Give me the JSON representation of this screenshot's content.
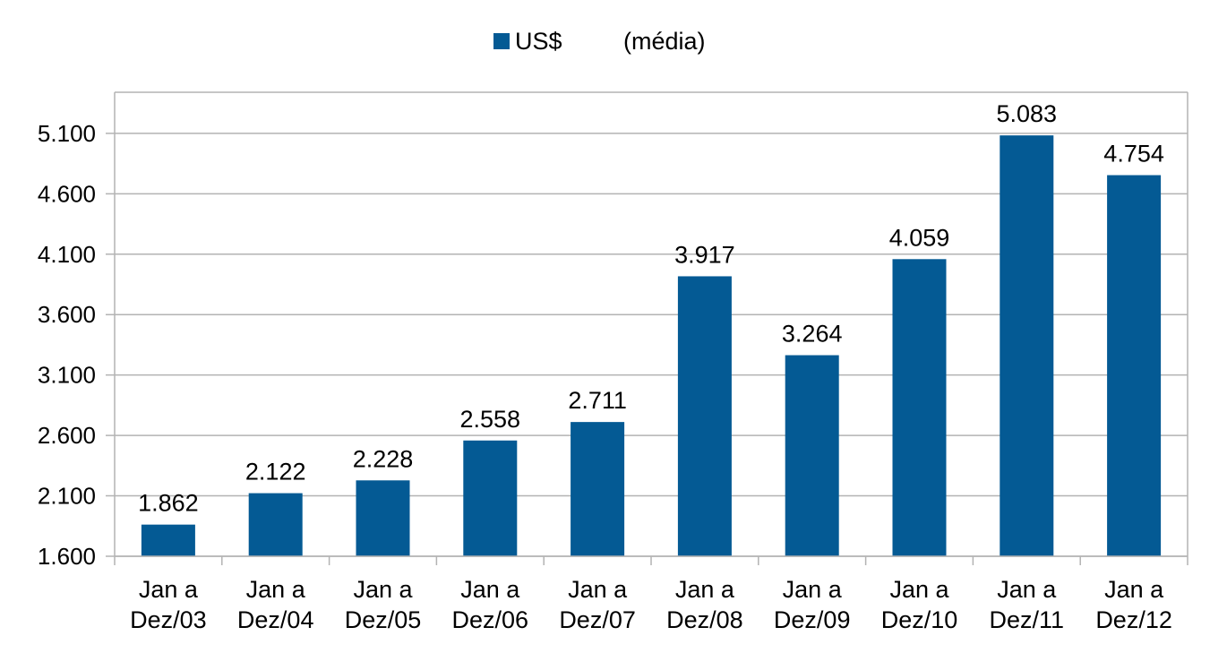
{
  "chart_data": {
    "type": "bar",
    "categories": [
      [
        "Jan a",
        "Dez/03"
      ],
      [
        "Jan a",
        "Dez/04"
      ],
      [
        "Jan a",
        "Dez/05"
      ],
      [
        "Jan a",
        "Dez/06"
      ],
      [
        "Jan a",
        "Dez/07"
      ],
      [
        "Jan a",
        "Dez/08"
      ],
      [
        "Jan a",
        "Dez/09"
      ],
      [
        "Jan a",
        "Dez/10"
      ],
      [
        "Jan a",
        "Dez/11"
      ],
      [
        "Jan a",
        "Dez/12"
      ]
    ],
    "series": [
      {
        "name": "US$        (média)",
        "legend_prefix": "US$",
        "legend_suffix": "(média)",
        "color": "#045A94",
        "values": [
          1862,
          2122,
          2228,
          2558,
          2711,
          3917,
          3264,
          4059,
          5083,
          4754
        ]
      }
    ],
    "data_labels": [
      "1.862",
      "2.122",
      "2.228",
      "2.558",
      "2.711",
      "3.917",
      "3.264",
      "4.059",
      "5.083",
      "4.754"
    ],
    "yticks": [
      1600,
      2100,
      2600,
      3100,
      3600,
      4100,
      4600,
      5100
    ],
    "ytick_labels": [
      "1.600",
      "2.100",
      "2.600",
      "3.100",
      "3.600",
      "4.100",
      "4.600",
      "5.100"
    ],
    "ylim": [
      1600,
      5440
    ],
    "grid": true,
    "legend_position": "top-center",
    "title": "",
    "xlabel": "",
    "ylabel": ""
  }
}
